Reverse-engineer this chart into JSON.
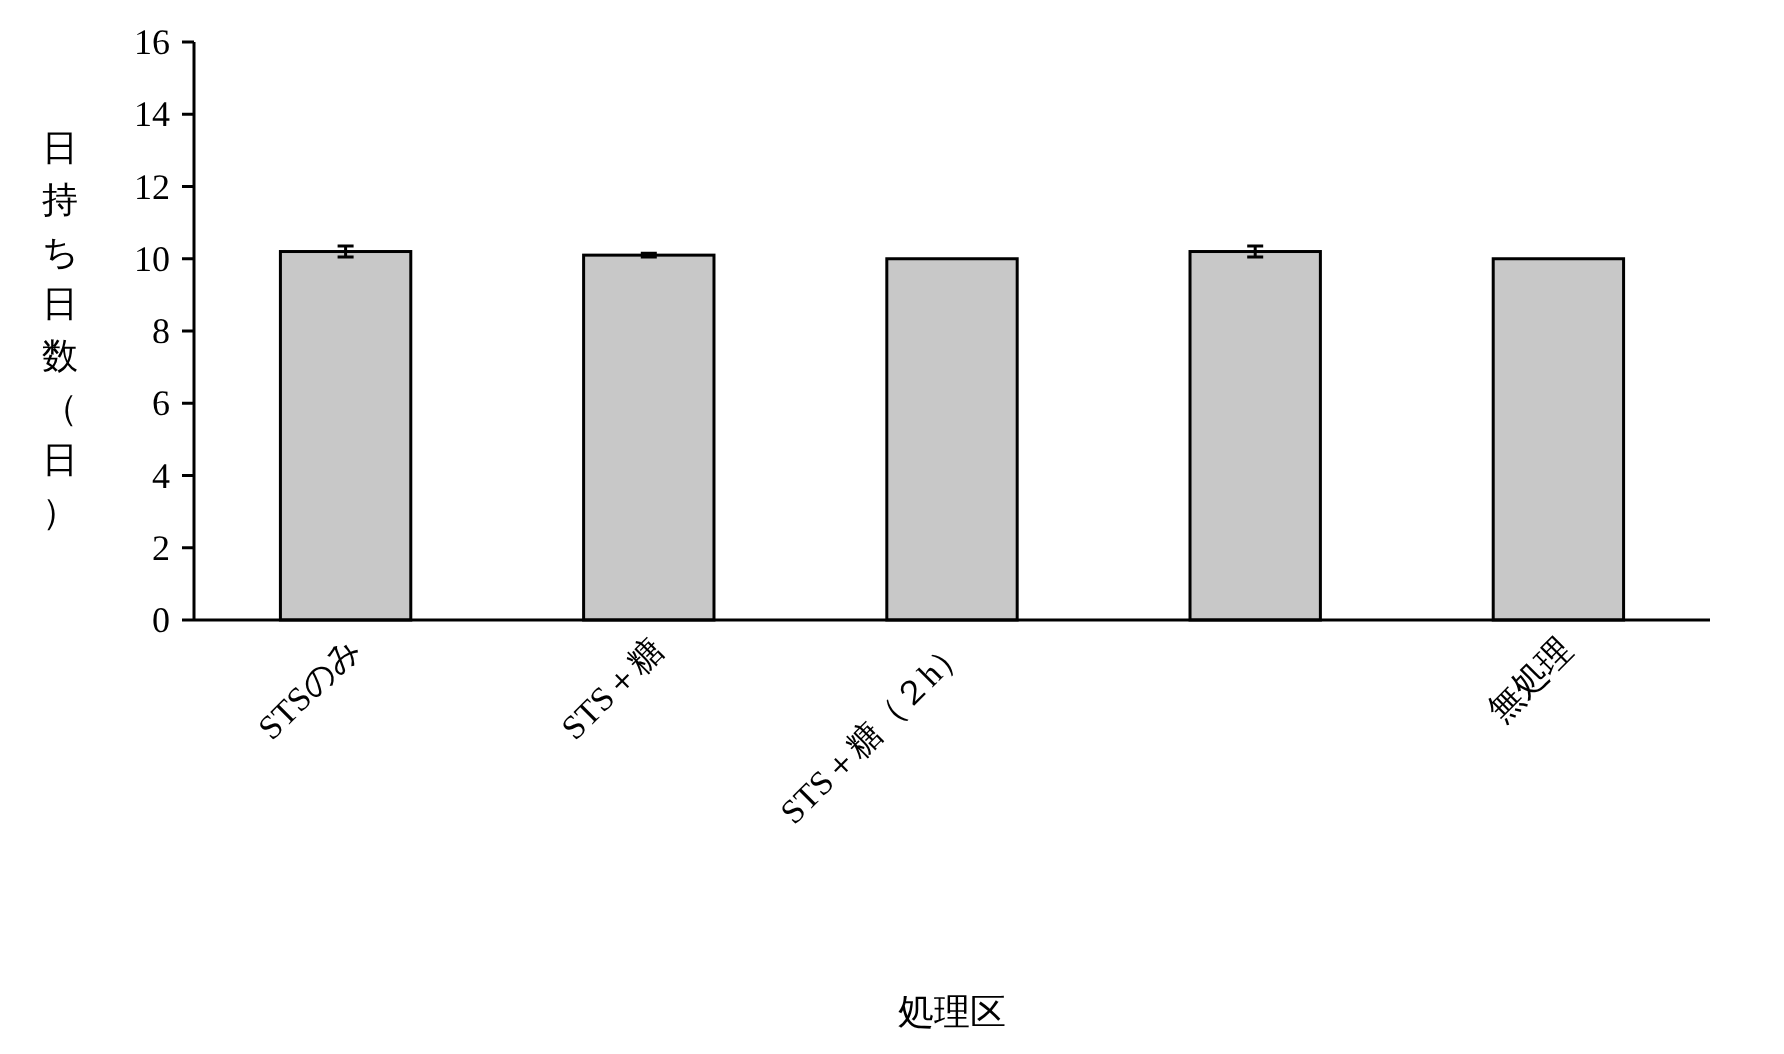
{
  "chart_data": {
    "type": "bar",
    "xlabel": "処理区",
    "ylabel": "日持ち日数（日）",
    "categories": [
      "STSのみ",
      "STS＋糖",
      "STS＋糖（２h）",
      null,
      "無処理"
    ],
    "values": [
      10.2,
      10.1,
      10.0,
      10.2,
      10.0
    ],
    "errors": [
      0.15,
      0.05,
      null,
      0.15,
      null
    ],
    "color": "#c8c8c8",
    "ylim": [
      0,
      16
    ],
    "yticks": [
      0,
      2,
      4,
      6,
      8,
      10,
      12,
      14,
      16
    ],
    "grid": false
  }
}
